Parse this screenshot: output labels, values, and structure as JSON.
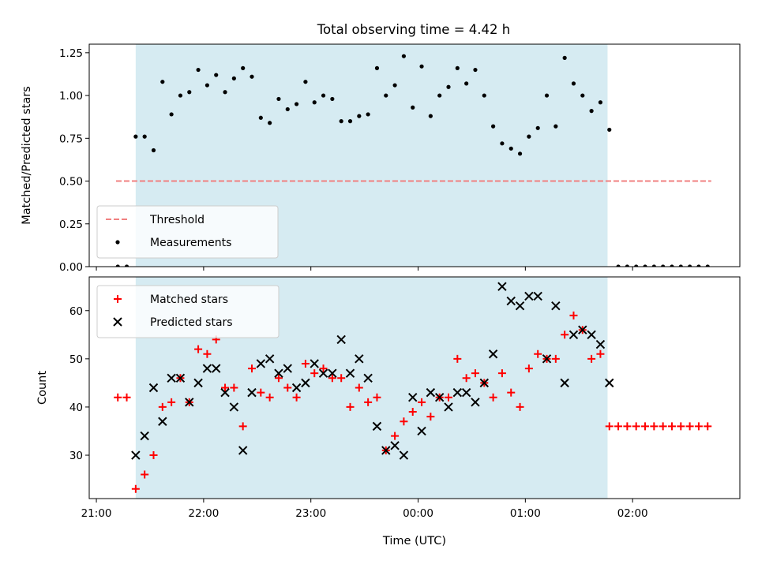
{
  "figure": {
    "title": "Total observing time = 4.42 h",
    "background": "#ffffff"
  },
  "chart_data": [
    {
      "type": "scatter",
      "title": "Total observing time = 4.42 h",
      "xlabel": "",
      "ylabel": "Matched/Predicted stars",
      "xlim": [
        "20:56",
        "03:00"
      ],
      "ylim": [
        0,
        1.3
      ],
      "yticks": [
        0.0,
        0.25,
        0.5,
        0.75,
        1.0,
        1.25
      ],
      "ytick_labels": [
        "0.00",
        "0.25",
        "0.50",
        "0.75",
        "1.00",
        "1.25"
      ],
      "xticks": [
        "21:00",
        "22:00",
        "23:00",
        "00:00",
        "01:00",
        "02:00"
      ],
      "xtick_labels_shown": false,
      "grid": false,
      "legend": "lower-left",
      "observing_window": {
        "start": "21:22",
        "end": "01:46",
        "color": "#add8e6"
      },
      "series": [
        {
          "name": "Threshold",
          "kind": "dashed-line",
          "color": "#f08080",
          "x": [
            "21:11",
            "02:44"
          ],
          "y": [
            0.5,
            0.5
          ]
        },
        {
          "name": "Measurements",
          "kind": "dots",
          "color": "#000000",
          "x": [
            "21:12",
            "21:17",
            "21:22",
            "21:27",
            "21:32",
            "21:37",
            "21:42",
            "21:47",
            "21:52",
            "21:57",
            "22:02",
            "22:07",
            "22:12",
            "22:17",
            "22:22",
            "22:27",
            "22:32",
            "22:37",
            "22:42",
            "22:47",
            "22:52",
            "22:57",
            "23:02",
            "23:07",
            "23:12",
            "23:17",
            "23:22",
            "23:27",
            "23:32",
            "23:37",
            "23:42",
            "23:47",
            "23:52",
            "23:57",
            "00:02",
            "00:07",
            "00:12",
            "00:17",
            "00:22",
            "00:27",
            "00:32",
            "00:37",
            "00:42",
            "00:47",
            "00:52",
            "00:57",
            "01:02",
            "01:07",
            "01:12",
            "01:17",
            "01:22",
            "01:27",
            "01:32",
            "01:37",
            "01:42",
            "01:47",
            "01:52",
            "01:57",
            "02:02",
            "02:07",
            "02:12",
            "02:17",
            "02:22",
            "02:27",
            "02:32",
            "02:37",
            "02:42"
          ],
          "y": [
            0.0,
            0.0,
            0.76,
            0.76,
            0.68,
            1.08,
            0.89,
            1.0,
            1.02,
            1.15,
            1.06,
            1.12,
            1.02,
            1.1,
            1.16,
            1.11,
            0.87,
            0.84,
            0.98,
            0.92,
            0.95,
            1.08,
            0.96,
            1.0,
            0.98,
            0.85,
            0.85,
            0.88,
            0.89,
            1.16,
            1.0,
            1.06,
            1.23,
            0.93,
            1.17,
            0.88,
            1.0,
            1.05,
            1.16,
            1.07,
            1.15,
            1.0,
            0.82,
            0.72,
            0.69,
            0.66,
            0.76,
            0.81,
            1.0,
            0.82,
            1.22,
            1.07,
            1.0,
            0.91,
            0.96,
            0.8,
            0.0,
            0.0,
            0.0,
            0.0,
            0.0,
            0.0,
            0.0,
            0.0,
            0.0,
            0.0,
            0.0
          ]
        }
      ]
    },
    {
      "type": "scatter",
      "title": "",
      "xlabel": "Time (UTC)",
      "ylabel": "Count",
      "xlim": [
        "20:56",
        "03:00"
      ],
      "ylim": [
        21,
        67
      ],
      "yticks": [
        30,
        40,
        50,
        60
      ],
      "ytick_labels": [
        "30",
        "40",
        "50",
        "60"
      ],
      "xticks": [
        "21:00",
        "22:00",
        "23:00",
        "00:00",
        "01:00",
        "02:00"
      ],
      "xtick_labels": [
        "21:00",
        "22:00",
        "23:00",
        "00:00",
        "01:00",
        "02:00"
      ],
      "grid": false,
      "legend": "upper-left",
      "observing_window": {
        "start": "21:22",
        "end": "01:46",
        "color": "#add8e6"
      },
      "series": [
        {
          "name": "Matched stars",
          "marker": "plus",
          "color": "#ff0000",
          "x": [
            "21:12",
            "21:17",
            "21:22",
            "21:27",
            "21:32",
            "21:37",
            "21:42",
            "21:47",
            "21:52",
            "21:57",
            "22:02",
            "22:07",
            "22:12",
            "22:17",
            "22:22",
            "22:27",
            "22:32",
            "22:37",
            "22:42",
            "22:47",
            "22:52",
            "22:57",
            "23:02",
            "23:07",
            "23:12",
            "23:17",
            "23:22",
            "23:27",
            "23:32",
            "23:37",
            "23:42",
            "23:47",
            "23:52",
            "23:57",
            "00:02",
            "00:07",
            "00:12",
            "00:17",
            "00:22",
            "00:27",
            "00:32",
            "00:37",
            "00:42",
            "00:47",
            "00:52",
            "00:57",
            "01:02",
            "01:07",
            "01:12",
            "01:17",
            "01:22",
            "01:27",
            "01:32",
            "01:37",
            "01:42",
            "01:47",
            "01:52",
            "01:57",
            "02:02",
            "02:07",
            "02:12",
            "02:17",
            "02:22",
            "02:27",
            "02:32",
            "02:37",
            "02:42"
          ],
          "y": [
            42,
            42,
            23,
            26,
            30,
            40,
            41,
            46,
            41,
            52,
            51,
            54,
            44,
            44,
            36,
            48,
            43,
            42,
            46,
            44,
            42,
            49,
            47,
            48,
            46,
            46,
            40,
            44,
            41,
            42,
            31,
            34,
            37,
            39,
            41,
            38,
            42,
            42,
            50,
            46,
            47,
            45,
            42,
            47,
            43,
            40,
            48,
            51,
            50,
            50,
            55,
            59,
            56,
            50,
            51,
            36,
            36,
            36,
            36,
            36,
            36,
            36,
            36,
            36,
            36,
            36,
            36
          ]
        },
        {
          "name": "Predicted stars",
          "marker": "x",
          "color": "#000000",
          "x": [
            "21:22",
            "21:27",
            "21:32",
            "21:37",
            "21:42",
            "21:47",
            "21:52",
            "21:57",
            "22:02",
            "22:07",
            "22:12",
            "22:17",
            "22:22",
            "22:27",
            "22:32",
            "22:37",
            "22:42",
            "22:47",
            "22:52",
            "22:57",
            "23:02",
            "23:07",
            "23:12",
            "23:17",
            "23:22",
            "23:27",
            "23:32",
            "23:37",
            "23:42",
            "23:47",
            "23:52",
            "23:57",
            "00:02",
            "00:07",
            "00:12",
            "00:17",
            "00:22",
            "00:27",
            "00:32",
            "00:37",
            "00:42",
            "00:47",
            "00:52",
            "00:57",
            "01:02",
            "01:07",
            "01:12",
            "01:17",
            "01:22",
            "01:27",
            "01:32",
            "01:37",
            "01:42",
            "01:47"
          ],
          "y": [
            30,
            34,
            44,
            37,
            46,
            46,
            41,
            45,
            48,
            48,
            43,
            40,
            31,
            43,
            49,
            50,
            47,
            48,
            44,
            45,
            49,
            47,
            47,
            54,
            47,
            50,
            46,
            36,
            31,
            32,
            30,
            42,
            35,
            43,
            42,
            40,
            43,
            43,
            41,
            45,
            51,
            65,
            62,
            61,
            63,
            63,
            50,
            61,
            45,
            55,
            56,
            55,
            53,
            45
          ]
        }
      ]
    }
  ]
}
